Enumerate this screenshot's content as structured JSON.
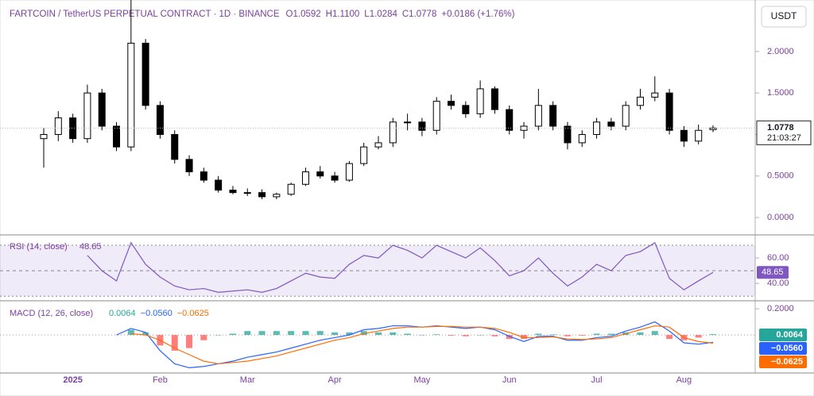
{
  "header": {
    "symbol": "FARTCOIN / TetherUS PERPETUAL CONTRACT · 1D · BINANCE",
    "ohlc": [
      "O1.0592",
      "H1.1100",
      "L1.0284",
      "C1.0778",
      "+0.0186 (+1.76%)"
    ],
    "currency_button": "USDT"
  },
  "chart_data": [
    {
      "type": "candlestick",
      "color": "#000000",
      "categories": [
        null,
        null,
        "2025",
        null,
        null,
        null,
        null,
        null,
        "Feb",
        null,
        null,
        null,
        null,
        null,
        "Mar",
        null,
        null,
        null,
        null,
        null,
        "Apr",
        null,
        null,
        null,
        null,
        null,
        "May",
        null,
        null,
        null,
        null,
        null,
        "Jun",
        null,
        null,
        null,
        null,
        null,
        "Jul",
        null,
        null,
        null,
        null,
        null,
        "Aug",
        null,
        null
      ],
      "open": [
        0.95,
        1.0,
        1.2,
        0.95,
        1.5,
        1.1,
        0.85,
        2.1,
        1.35,
        1.0,
        0.7,
        0.55,
        0.45,
        0.33,
        0.3,
        0.3,
        0.25,
        0.28,
        0.4,
        0.55,
        0.5,
        0.45,
        0.65,
        0.85,
        0.9,
        1.15,
        1.15,
        1.05,
        1.4,
        1.35,
        1.25,
        1.55,
        1.3,
        1.05,
        1.1,
        1.35,
        1.1,
        0.9,
        1.0,
        1.15,
        1.1,
        1.35,
        1.45,
        1.5,
        1.05,
        0.92,
        1.0592
      ],
      "high": [
        1.08,
        1.28,
        1.25,
        1.6,
        1.55,
        1.15,
        2.65,
        2.15,
        1.4,
        1.05,
        0.75,
        0.6,
        0.5,
        0.38,
        0.35,
        0.34,
        0.3,
        0.42,
        0.6,
        0.62,
        0.55,
        0.68,
        0.9,
        0.98,
        1.2,
        1.25,
        1.2,
        1.45,
        1.48,
        1.4,
        1.65,
        1.58,
        1.35,
        1.15,
        1.55,
        1.4,
        1.15,
        1.05,
        1.2,
        1.2,
        1.4,
        1.55,
        1.7,
        1.55,
        1.1,
        1.12,
        1.11
      ],
      "low": [
        0.6,
        0.92,
        0.9,
        0.9,
        1.05,
        0.8,
        0.8,
        1.3,
        0.95,
        0.65,
        0.5,
        0.42,
        0.3,
        0.28,
        0.26,
        0.22,
        0.22,
        0.26,
        0.38,
        0.47,
        0.42,
        0.43,
        0.62,
        0.82,
        0.85,
        1.05,
        0.98,
        1.0,
        1.3,
        1.2,
        1.2,
        1.25,
        1.0,
        0.95,
        1.05,
        1.05,
        0.82,
        0.85,
        0.95,
        1.05,
        1.05,
        1.3,
        1.4,
        1.0,
        0.85,
        0.88,
        1.0284
      ],
      "close": [
        1.0,
        1.2,
        0.95,
        1.5,
        1.1,
        0.85,
        2.1,
        1.35,
        1.0,
        0.7,
        0.55,
        0.45,
        0.33,
        0.3,
        0.3,
        0.25,
        0.28,
        0.4,
        0.55,
        0.5,
        0.45,
        0.65,
        0.85,
        0.9,
        1.15,
        1.15,
        1.05,
        1.4,
        1.35,
        1.25,
        1.55,
        1.3,
        1.05,
        1.1,
        1.35,
        1.1,
        0.9,
        1.0,
        1.15,
        1.1,
        1.35,
        1.45,
        1.5,
        1.05,
        0.92,
        1.05,
        1.0778
      ],
      "ylim": [
        -0.2,
        2.62
      ],
      "yticks": [
        {
          "value": 2,
          "label": "2.0000"
        },
        {
          "value": 1.5,
          "label": "1.5000"
        },
        {
          "value": 1,
          "label": "1.0000"
        },
        {
          "value": 0.5,
          "label": "0.5000"
        },
        {
          "value": 0,
          "label": "0.0000"
        }
      ],
      "last_price": 1.0778,
      "countdown": "21:03:27"
    },
    {
      "type": "line",
      "title": "RSI (14, close)",
      "color": "#7e57c2",
      "values": [
        null,
        null,
        null,
        62,
        50,
        42,
        72,
        55,
        45,
        38,
        35,
        36,
        33,
        34,
        35,
        33,
        36,
        42,
        48,
        45,
        44,
        55,
        62,
        60,
        70,
        66,
        60,
        70,
        65,
        60,
        68,
        58,
        46,
        50,
        60,
        48,
        38,
        45,
        55,
        50,
        62,
        65,
        72,
        44,
        35,
        42,
        48.65
      ],
      "ylim": [
        27,
        77.5
      ],
      "yticks": [
        {
          "value": 60,
          "label": "60.00"
        },
        {
          "value": 40,
          "label": "40.00"
        }
      ],
      "bands": [
        70,
        50,
        30
      ]
    },
    {
      "type": "macd",
      "title": "MACD (12, 26, close)",
      "series": [
        {
          "kind": "histogram",
          "color": "#26a69a",
          "negative_color": "#ff5252",
          "values": [
            null,
            null,
            null,
            null,
            null,
            null,
            0.04,
            0.02,
            -0.08,
            -0.12,
            -0.1,
            -0.04,
            0.0,
            0.01,
            0.03,
            0.03,
            0.03,
            0.03,
            0.03,
            0.03,
            0.02,
            0.02,
            0.03,
            0.02,
            0.02,
            0.01,
            0.0,
            0.005,
            -0.005,
            -0.01,
            0.0,
            -0.01,
            -0.03,
            -0.03,
            0.01,
            0.005,
            -0.01,
            -0.005,
            0.01,
            0.01,
            0.02,
            0.02,
            0.03,
            -0.03,
            -0.04,
            -0.02,
            0.0064
          ]
        },
        {
          "kind": "line",
          "color": "#2962ff",
          "last_label": "−0.0560",
          "values": [
            null,
            null,
            null,
            null,
            null,
            0.0,
            0.05,
            0.02,
            -0.12,
            -0.22,
            -0.25,
            -0.24,
            -0.22,
            -0.2,
            -0.17,
            -0.15,
            -0.13,
            -0.1,
            -0.07,
            -0.04,
            -0.02,
            0.0,
            0.04,
            0.05,
            0.07,
            0.07,
            0.06,
            0.07,
            0.06,
            0.05,
            0.06,
            0.04,
            -0.01,
            -0.05,
            -0.01,
            -0.01,
            -0.04,
            -0.04,
            -0.02,
            -0.01,
            0.03,
            0.06,
            0.1,
            0.03,
            -0.06,
            -0.07,
            -0.056
          ]
        },
        {
          "kind": "line",
          "color": "#ff6d00",
          "last_label": "−0.0625",
          "values": [
            null,
            null,
            null,
            null,
            null,
            null,
            0.01,
            0.0,
            -0.04,
            -0.1,
            -0.15,
            -0.2,
            -0.22,
            -0.21,
            -0.2,
            -0.18,
            -0.16,
            -0.13,
            -0.1,
            -0.07,
            -0.04,
            -0.02,
            0.01,
            0.03,
            0.05,
            0.06,
            0.06,
            0.065,
            0.065,
            0.06,
            0.06,
            0.05,
            0.02,
            -0.02,
            -0.02,
            -0.015,
            -0.03,
            -0.035,
            -0.03,
            -0.02,
            0.01,
            0.04,
            0.07,
            0.06,
            -0.02,
            -0.05,
            -0.0625
          ]
        }
      ],
      "ylim": [
        -0.29,
        0.255
      ],
      "yticks": [
        {
          "value": 0.2,
          "label": "0.2000"
        }
      ]
    }
  ]
}
